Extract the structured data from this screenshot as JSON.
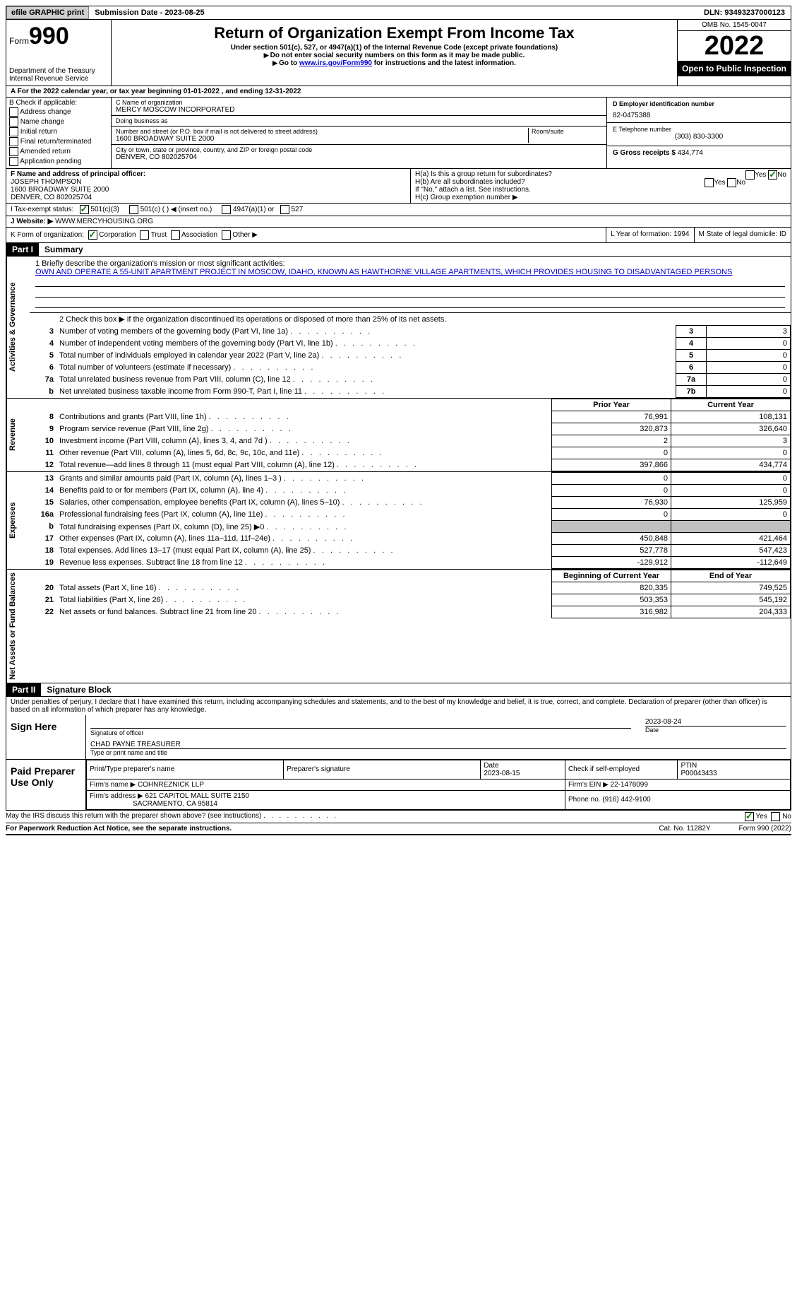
{
  "topbar": {
    "efile": "efile GRAPHIC print",
    "submission": "Submission Date - 2023-08-25",
    "dln": "DLN: 93493237000123"
  },
  "header": {
    "formLabel": "Form",
    "formNum": "990",
    "title": "Return of Organization Exempt From Income Tax",
    "sub1": "Under section 501(c), 527, or 4947(a)(1) of the Internal Revenue Code (except private foundations)",
    "sub2": "Do not enter social security numbers on this form as it may be made public.",
    "sub3a": "Go to ",
    "sub3link": "www.irs.gov/Form990",
    "sub3b": " for instructions and the latest information.",
    "dept": "Department of the Treasury\nInternal Revenue Service",
    "omb": "OMB No. 1545-0047",
    "year": "2022",
    "openPublic": "Open to Public Inspection"
  },
  "lineA": "A For the 2022 calendar year, or tax year beginning 01-01-2022    , and ending 12-31-2022",
  "colB": {
    "label": "B Check if applicable:",
    "opts": [
      "Address change",
      "Name change",
      "Initial return",
      "Final return/terminated",
      "Amended return",
      "Application pending"
    ]
  },
  "colC": {
    "nameLabel": "C Name of organization",
    "name": "MERCY MOSCOW INCORPORATED",
    "dbaLabel": "Doing business as",
    "dba": "",
    "streetLabel": "Number and street (or P.O. box if mail is not delivered to street address)",
    "street": "1600 BROADWAY SUITE 2000",
    "roomLabel": "Room/suite",
    "cityLabel": "City or town, state or province, country, and ZIP or foreign postal code",
    "city": "DENVER, CO  802025704"
  },
  "colD": {
    "einLabel": "D Employer identification number",
    "ein": "82-0475388",
    "phoneLabel": "E Telephone number",
    "phone": "(303) 830-3300",
    "grossLabel": "G Gross receipts $",
    "gross": "434,774"
  },
  "colF": {
    "label": "F Name and address of principal officer:",
    "name": "JOSEPH THOMPSON",
    "addr1": "1600 BROADWAY SUITE 2000",
    "addr2": "DENVER, CO  802025704"
  },
  "colH": {
    "ha": "H(a)  Is this a group return for subordinates?",
    "hb": "H(b)  Are all subordinates included?",
    "hbNote": "If \"No,\" attach a list. See instructions.",
    "hc": "H(c)  Group exemption number ▶",
    "yes": "Yes",
    "no": "No"
  },
  "rowI": {
    "label": "I   Tax-exempt status:",
    "o1": "501(c)(3)",
    "o2": "501(c) (  ) ◀ (insert no.)",
    "o3": "4947(a)(1) or",
    "o4": "527"
  },
  "rowJ": {
    "label": "J   Website: ▶",
    "value": "WWW.MERCYHOUSING.ORG"
  },
  "rowK": {
    "label": "K Form of organization:",
    "o1": "Corporation",
    "o2": "Trust",
    "o3": "Association",
    "o4": "Other ▶",
    "lLabel": "L Year of formation:",
    "lVal": "1994",
    "mLabel": "M State of legal domicile:",
    "mVal": "ID"
  },
  "part1": {
    "label": "Part I",
    "title": "Summary",
    "vlabels": [
      "Activities & Governance",
      "Revenue",
      "Expenses",
      "Net Assets or Fund Balances"
    ],
    "line1Label": "1   Briefly describe the organization's mission or most significant activities:",
    "mission": "OWN AND OPERATE A 55-UNIT APARTMENT PROJECT IN MOSCOW, IDAHO, KNOWN AS HAWTHORNE VILLAGE APARTMENTS, WHICH PROVIDES HOUSING TO DISADVANTAGED PERSONS",
    "line2": "2    Check this box ▶       if the organization discontinued its operations or disposed of more than 25% of its net assets.",
    "rows_ag": [
      {
        "n": "3",
        "desc": "Number of voting members of the governing body (Part VI, line 1a)",
        "box": "3",
        "val": "3"
      },
      {
        "n": "4",
        "desc": "Number of independent voting members of the governing body (Part VI, line 1b)",
        "box": "4",
        "val": "0"
      },
      {
        "n": "5",
        "desc": "Total number of individuals employed in calendar year 2022 (Part V, line 2a)",
        "box": "5",
        "val": "0"
      },
      {
        "n": "6",
        "desc": "Total number of volunteers (estimate if necessary)",
        "box": "6",
        "val": "0"
      },
      {
        "n": "7a",
        "desc": "Total unrelated business revenue from Part VIII, column (C), line 12",
        "box": "7a",
        "val": "0"
      },
      {
        "n": "b",
        "desc": "Net unrelated business taxable income from Form 990-T, Part I, line 11",
        "box": "7b",
        "val": "0"
      }
    ],
    "pyHeader": "Prior Year",
    "cyHeader": "Current Year",
    "rows_rev": [
      {
        "n": "8",
        "desc": "Contributions and grants (Part VIII, line 1h)",
        "py": "76,991",
        "cy": "108,131"
      },
      {
        "n": "9",
        "desc": "Program service revenue (Part VIII, line 2g)",
        "py": "320,873",
        "cy": "326,640"
      },
      {
        "n": "10",
        "desc": "Investment income (Part VIII, column (A), lines 3, 4, and 7d )",
        "py": "2",
        "cy": "3"
      },
      {
        "n": "11",
        "desc": "Other revenue (Part VIII, column (A), lines 5, 6d, 8c, 9c, 10c, and 11e)",
        "py": "0",
        "cy": "0"
      },
      {
        "n": "12",
        "desc": "Total revenue—add lines 8 through 11 (must equal Part VIII, column (A), line 12)",
        "py": "397,866",
        "cy": "434,774"
      }
    ],
    "rows_exp": [
      {
        "n": "13",
        "desc": "Grants and similar amounts paid (Part IX, column (A), lines 1–3 )",
        "py": "0",
        "cy": "0"
      },
      {
        "n": "14",
        "desc": "Benefits paid to or for members (Part IX, column (A), line 4)",
        "py": "0",
        "cy": "0"
      },
      {
        "n": "15",
        "desc": "Salaries, other compensation, employee benefits (Part IX, column (A), lines 5–10)",
        "py": "76,930",
        "cy": "125,959"
      },
      {
        "n": "16a",
        "desc": "Professional fundraising fees (Part IX, column (A), line 11e)",
        "py": "0",
        "cy": "0"
      },
      {
        "n": "b",
        "desc": "Total fundraising expenses (Part IX, column (D), line 25) ▶0",
        "py": "",
        "cy": "",
        "shaded": true
      },
      {
        "n": "17",
        "desc": "Other expenses (Part IX, column (A), lines 11a–11d, 11f–24e)",
        "py": "450,848",
        "cy": "421,464"
      },
      {
        "n": "18",
        "desc": "Total expenses. Add lines 13–17 (must equal Part IX, column (A), line 25)",
        "py": "527,778",
        "cy": "547,423"
      },
      {
        "n": "19",
        "desc": "Revenue less expenses. Subtract line 18 from line 12",
        "py": "-129,912",
        "cy": "-112,649"
      }
    ],
    "boyHeader": "Beginning of Current Year",
    "eoyHeader": "End of Year",
    "rows_na": [
      {
        "n": "20",
        "desc": "Total assets (Part X, line 16)",
        "py": "820,335",
        "cy": "749,525"
      },
      {
        "n": "21",
        "desc": "Total liabilities (Part X, line 26)",
        "py": "503,353",
        "cy": "545,192"
      },
      {
        "n": "22",
        "desc": "Net assets or fund balances. Subtract line 21 from line 20",
        "py": "316,982",
        "cy": "204,333"
      }
    ]
  },
  "part2": {
    "label": "Part II",
    "title": "Signature Block",
    "decl": "Under penalties of perjury, I declare that I have examined this return, including accompanying schedules and statements, and to the best of my knowledge and belief, it is true, correct, and complete. Declaration of preparer (other than officer) is based on all information of which preparer has any knowledge.",
    "signHere": "Sign Here",
    "sigOfficer": "Signature of officer",
    "sigDate": "2023-08-24",
    "dateLabel": "Date",
    "officerName": "CHAD PAYNE  TREASURER",
    "typeName": "Type or print name and title",
    "paidPrep": "Paid Preparer Use Only",
    "prepNameLabel": "Print/Type preparer's name",
    "prepSigLabel": "Preparer's signature",
    "prepDateLabel": "Date",
    "prepDate": "2023-08-15",
    "checkIf": "Check         if self-employed",
    "ptinLabel": "PTIN",
    "ptin": "P00043433",
    "firmNameLabel": "Firm's name     ▶",
    "firmName": "COHNREZNICK LLP",
    "firmEinLabel": "Firm's EIN ▶",
    "firmEin": "22-1478099",
    "firmAddrLabel": "Firm's address ▶",
    "firmAddr1": "621 CAPITOL MALL SUITE 2150",
    "firmAddr2": "SACRAMENTO, CA  95814",
    "phoneLabel": "Phone no.",
    "phone": "(916) 442-9100"
  },
  "footer": {
    "discuss": "May the IRS discuss this return with the preparer shown above? (see instructions)",
    "paperwork": "For Paperwork Reduction Act Notice, see the separate instructions.",
    "cat": "Cat. No. 11282Y",
    "form": "Form 990 (2022)",
    "yes": "Yes",
    "no": "No"
  },
  "colors": {
    "link": "#0000cc",
    "check": "#008000",
    "black": "#000000",
    "shade": "#c0c0c0"
  }
}
